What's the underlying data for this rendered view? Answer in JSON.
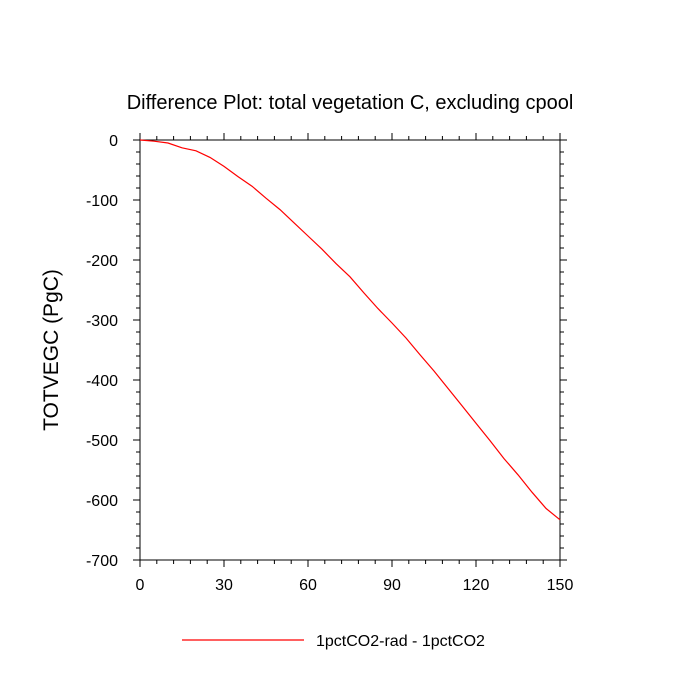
{
  "chart_data": {
    "type": "line",
    "title": "Difference Plot: total vegetation C, excluding cpool",
    "xlabel": "",
    "ylabel": "TOTVEGC  (PgC)",
    "xlim": [
      0,
      150
    ],
    "ylim": [
      -700,
      0
    ],
    "xticks": [
      0,
      30,
      60,
      90,
      120,
      150
    ],
    "xtick_labels": [
      "0",
      "30",
      "60",
      "90",
      "120",
      "150"
    ],
    "yticks": [
      0,
      -100,
      -200,
      -300,
      -400,
      -500,
      -600,
      -700
    ],
    "ytick_labels": [
      "0",
      "-100",
      "-200",
      "-300",
      "-400",
      "-500",
      "-600",
      "-700"
    ],
    "grid": false,
    "legend_position": "bottom",
    "series": [
      {
        "name": "1pctCO2-rad - 1pctCO2",
        "color": "#ff0000",
        "x": [
          0,
          5,
          10,
          15,
          20,
          25,
          30,
          35,
          40,
          45,
          50,
          55,
          60,
          65,
          70,
          75,
          80,
          85,
          90,
          95,
          100,
          105,
          110,
          115,
          120,
          125,
          130,
          135,
          140,
          145,
          150
        ],
        "y": [
          0,
          -2,
          -5,
          -13,
          -18,
          -29,
          -44,
          -61,
          -77,
          -97,
          -116,
          -138,
          -160,
          -182,
          -206,
          -228,
          -255,
          -281,
          -305,
          -330,
          -358,
          -385,
          -414,
          -443,
          -472,
          -501,
          -531,
          -558,
          -587,
          -614,
          -633
        ]
      }
    ]
  }
}
